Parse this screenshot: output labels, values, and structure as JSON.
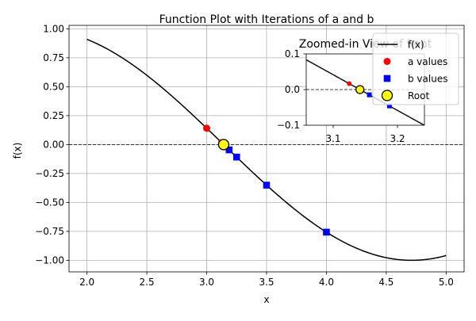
{
  "chart_data": {
    "type": "line",
    "title": "Function Plot with Iterations of a and b",
    "xlabel": "x",
    "ylabel": "f(x)",
    "xlim": [
      1.85,
      5.15
    ],
    "ylim": [
      -1.1,
      1.03
    ],
    "grid": true,
    "x_ticks": [
      2.0,
      2.5,
      3.0,
      3.5,
      4.0,
      4.5,
      5.0
    ],
    "x_tick_labels": [
      "2.0",
      "2.5",
      "3.0",
      "3.5",
      "4.0",
      "4.5",
      "5.0"
    ],
    "y_ticks": [
      1.0,
      0.75,
      0.5,
      0.25,
      0.0,
      -0.25,
      -0.5,
      -0.75,
      -1.0
    ],
    "y_tick_labels": [
      "1.00",
      "0.75",
      "0.50",
      "0.25",
      "0.00",
      "−0.25",
      "−0.50",
      "−0.75",
      "−1.00"
    ],
    "function": "sin",
    "x_range": [
      2.0,
      5.0
    ],
    "series": [
      {
        "name": "f(x)",
        "kind": "line",
        "color": "#000000",
        "x_range": [
          2.0,
          5.0
        ]
      },
      {
        "name": "a values",
        "kind": "scatter",
        "marker": "circle",
        "color": "#ff0000",
        "x": [
          3.0,
          3.125
        ],
        "y": [
          0.1411,
          0.0166
        ]
      },
      {
        "name": "b values",
        "kind": "scatter",
        "marker": "square",
        "color": "#0000ff",
        "x": [
          4.0,
          3.5,
          3.25,
          3.1875,
          3.15625
        ],
        "y": [
          -0.7568,
          -0.3508,
          -0.1082,
          -0.0459,
          -0.0147
        ]
      },
      {
        "name": "Root",
        "kind": "scatter",
        "marker": "circle-large",
        "color": "#ffff00",
        "edge": "#000000",
        "x": [
          3.1416
        ],
        "y": [
          0.0
        ]
      }
    ],
    "reference_line": {
      "y": 0,
      "style": "dashed"
    },
    "legend": {
      "placement": "upper right",
      "entries": [
        "f(x)",
        "a values",
        "b values",
        "Root"
      ]
    },
    "inset": {
      "title": "Zoomed-in View of Root",
      "placement": "upper right",
      "xlim": [
        3.058,
        3.242
      ],
      "ylim": [
        -0.1,
        0.1
      ],
      "x_ticks": [
        3.1,
        3.2
      ],
      "x_tick_labels": [
        "3.1",
        "3.2"
      ],
      "y_ticks": [
        0.1,
        0.0,
        -0.1
      ],
      "y_tick_labels": [
        "0.1",
        "0.0",
        "−0.1"
      ]
    }
  }
}
